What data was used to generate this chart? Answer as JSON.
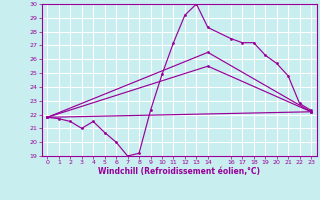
{
  "xlabel": "Windchill (Refroidissement éolien,°C)",
  "bg_color": "#c8eef0",
  "grid_color": "#ffffff",
  "line_color": "#990099",
  "xlim": [
    -0.5,
    23.5
  ],
  "ylim": [
    19,
    30
  ],
  "xtick_vals": [
    0,
    1,
    2,
    3,
    4,
    5,
    6,
    7,
    8,
    9,
    10,
    11,
    12,
    13,
    14,
    16,
    17,
    18,
    19,
    20,
    21,
    22,
    23
  ],
  "ytick_vals": [
    19,
    20,
    21,
    22,
    23,
    24,
    25,
    26,
    27,
    28,
    29,
    30
  ],
  "series1_x": [
    0,
    1,
    2,
    3,
    4,
    5,
    6,
    7,
    8,
    9,
    10,
    11,
    12,
    13,
    14,
    16,
    17,
    18,
    19,
    20,
    21,
    22,
    23
  ],
  "series1_y": [
    21.8,
    21.7,
    21.5,
    21.0,
    21.5,
    20.7,
    20.0,
    19.0,
    19.2,
    22.3,
    24.9,
    27.2,
    29.2,
    30.0,
    28.3,
    27.5,
    27.2,
    27.2,
    26.3,
    25.7,
    24.8,
    22.8,
    22.3
  ],
  "series2_x": [
    0,
    23
  ],
  "series2_y": [
    21.8,
    22.2
  ],
  "series3_x": [
    0,
    14,
    23
  ],
  "series3_y": [
    21.8,
    25.5,
    22.2
  ],
  "series4_x": [
    0,
    14,
    23
  ],
  "series4_y": [
    21.8,
    26.5,
    22.2
  ]
}
